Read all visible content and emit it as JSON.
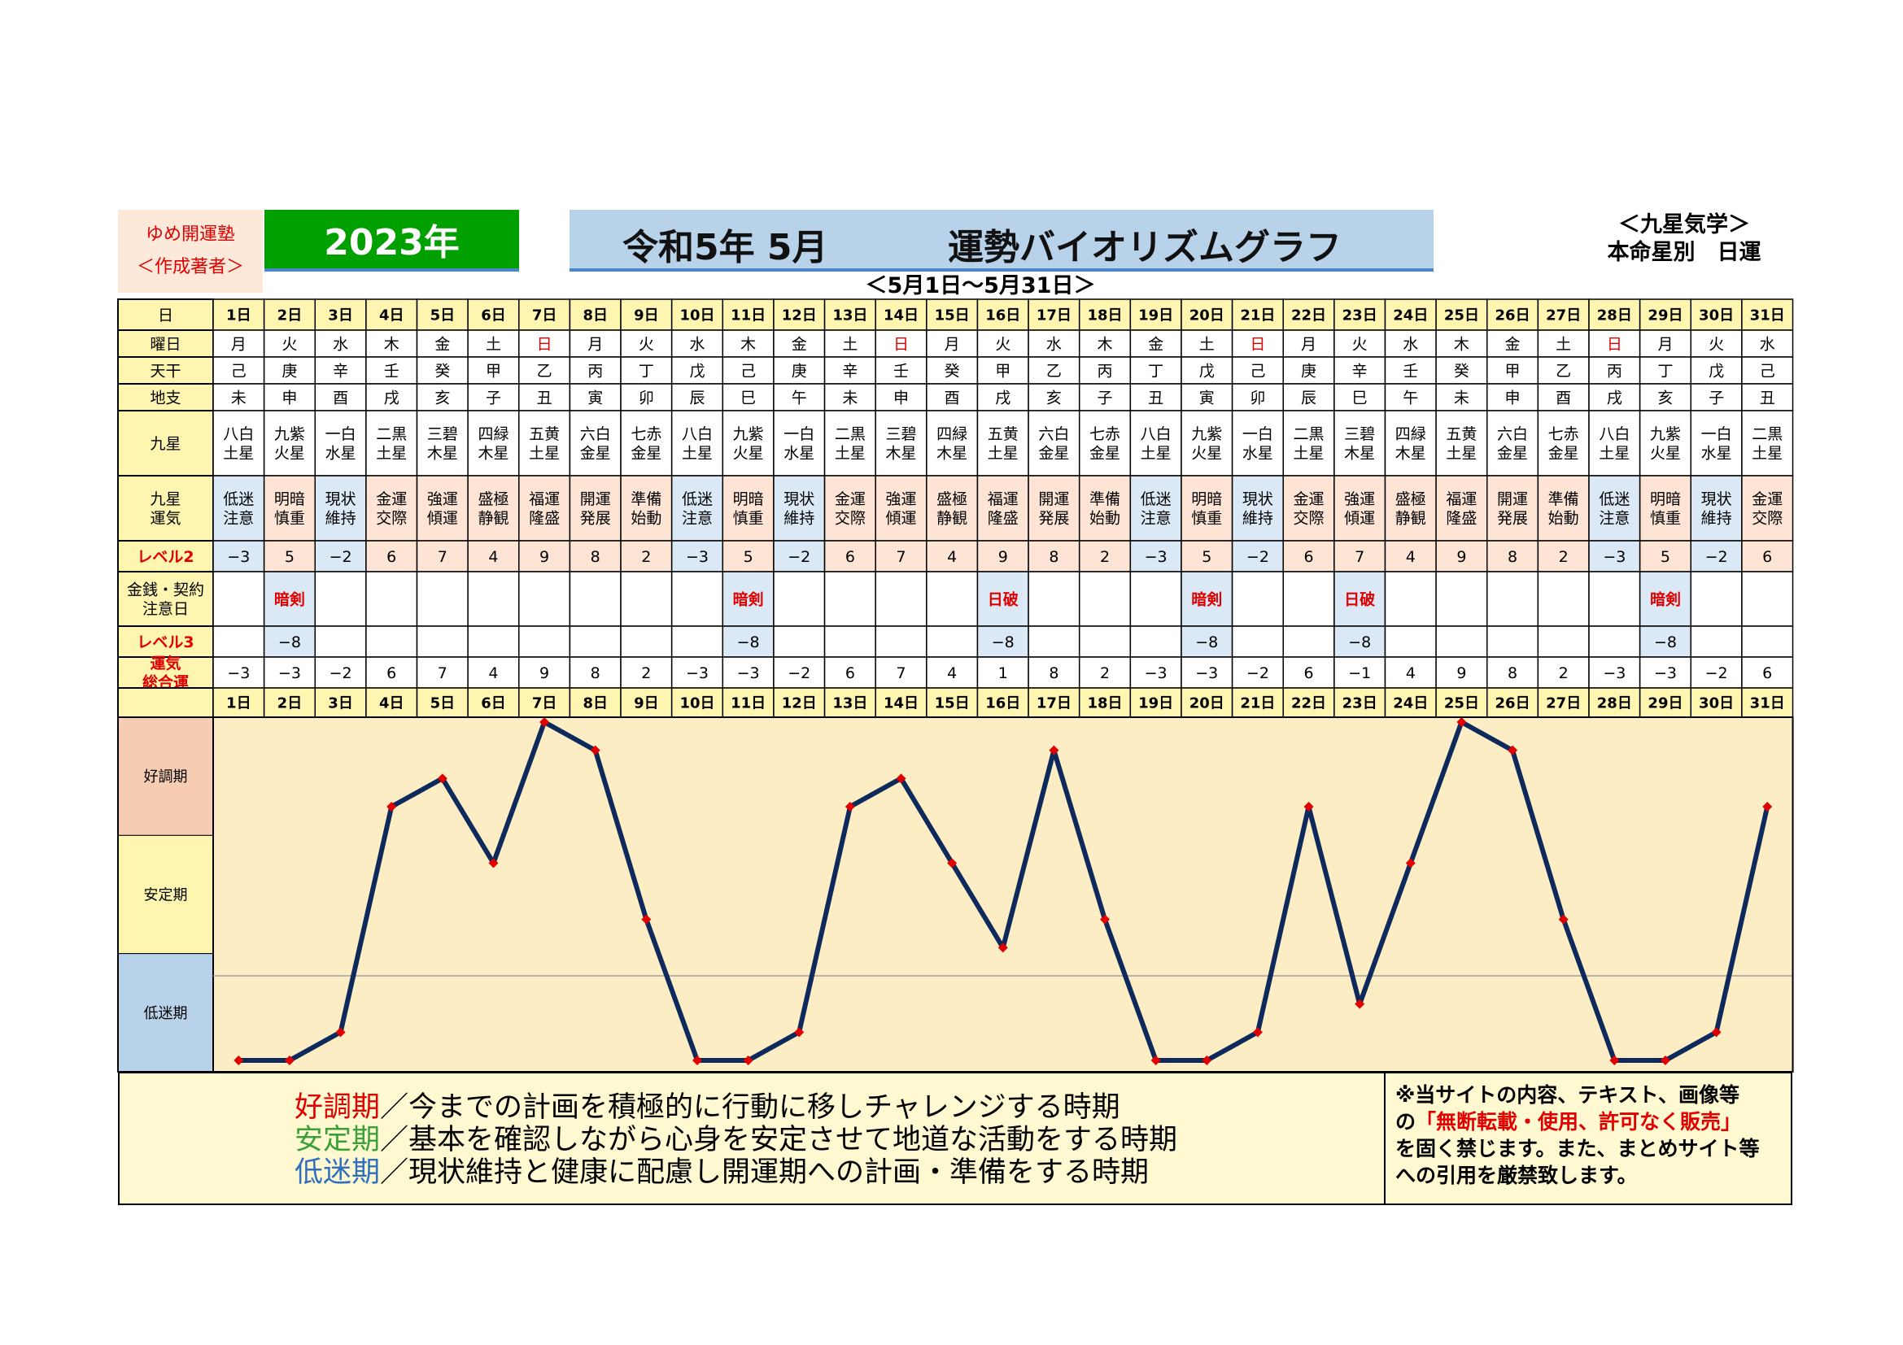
{
  "header": {
    "author_line1": "ゆめ開運塾",
    "author_line2": "＜作成著者＞",
    "year": "2023年",
    "title_left": "令和5年 5月",
    "title_right": "運勢バイオリズムグラフ",
    "corner_line1": "＜九星気学＞",
    "corner_line2": "本命星別　日運",
    "range": "＜5月1日～5月31日＞"
  },
  "table": {
    "row_labels": {
      "day": "日",
      "weekday": "曜日",
      "stem": "天干",
      "branch": "地支",
      "star": "九星",
      "fortune": "九星\n運気",
      "level2": "レベル2",
      "money": "金銭・契約\n注意日",
      "level3": "レベル3",
      "total": "運気\n総合運"
    },
    "days": [
      "1日",
      "2日",
      "3日",
      "4日",
      "5日",
      "6日",
      "7日",
      "8日",
      "9日",
      "10日",
      "11日",
      "12日",
      "13日",
      "14日",
      "15日",
      "16日",
      "17日",
      "18日",
      "19日",
      "20日",
      "21日",
      "22日",
      "23日",
      "24日",
      "25日",
      "26日",
      "27日",
      "28日",
      "29日",
      "30日",
      "31日"
    ],
    "weekdays": [
      "月",
      "火",
      "水",
      "木",
      "金",
      "土",
      "日",
      "月",
      "火",
      "水",
      "木",
      "金",
      "土",
      "日",
      "月",
      "火",
      "水",
      "木",
      "金",
      "土",
      "日",
      "月",
      "火",
      "水",
      "木",
      "金",
      "土",
      "日",
      "月",
      "火",
      "水"
    ],
    "stems": [
      "己",
      "庚",
      "辛",
      "壬",
      "癸",
      "甲",
      "乙",
      "丙",
      "丁",
      "戊",
      "己",
      "庚",
      "辛",
      "壬",
      "癸",
      "甲",
      "乙",
      "丙",
      "丁",
      "戊",
      "己",
      "庚",
      "辛",
      "壬",
      "癸",
      "甲",
      "乙",
      "丙",
      "丁",
      "戊",
      "己"
    ],
    "branches": [
      "未",
      "申",
      "酉",
      "戌",
      "亥",
      "子",
      "丑",
      "寅",
      "卯",
      "辰",
      "巳",
      "午",
      "未",
      "申",
      "酉",
      "戌",
      "亥",
      "子",
      "丑",
      "寅",
      "卯",
      "辰",
      "巳",
      "午",
      "未",
      "申",
      "酉",
      "戌",
      "亥",
      "子",
      "丑"
    ],
    "stars": [
      "八白\n土星",
      "九紫\n火星",
      "一白\n水星",
      "二黒\n土星",
      "三碧\n木星",
      "四緑\n木星",
      "五黄\n土星",
      "六白\n金星",
      "七赤\n金星",
      "八白\n土星",
      "九紫\n火星",
      "一白\n水星",
      "二黒\n土星",
      "三碧\n木星",
      "四緑\n木星",
      "五黄\n土星",
      "六白\n金星",
      "七赤\n金星",
      "八白\n土星",
      "九紫\n火星",
      "一白\n水星",
      "二黒\n土星",
      "三碧\n木星",
      "四緑\n木星",
      "五黄\n土星",
      "六白\n金星",
      "七赤\n金星",
      "八白\n土星",
      "九紫\n火星",
      "一白\n水星",
      "二黒\n土星"
    ],
    "fortunes": [
      "低迷\n注意",
      "明暗\n慎重",
      "現状\n維持",
      "金運\n交際",
      "強運\n傾運",
      "盛極\n静観",
      "福運\n隆盛",
      "開運\n発展",
      "準備\n始動",
      "低迷\n注意",
      "明暗\n慎重",
      "現状\n維持",
      "金運\n交際",
      "強運\n傾運",
      "盛極\n静観",
      "福運\n隆盛",
      "開運\n発展",
      "準備\n始動",
      "低迷\n注意",
      "明暗\n慎重",
      "現状\n維持",
      "金運\n交際",
      "強運\n傾運",
      "盛極\n静観",
      "福運\n隆盛",
      "開運\n発展",
      "準備\n始動",
      "低迷\n注意",
      "明暗\n慎重",
      "現状\n維持",
      "金運\n交際"
    ],
    "level2": [
      "−3",
      "5",
      "−2",
      "6",
      "7",
      "4",
      "9",
      "8",
      "2",
      "−3",
      "5",
      "−2",
      "6",
      "7",
      "4",
      "9",
      "8",
      "2",
      "−3",
      "5",
      "−2",
      "6",
      "7",
      "4",
      "9",
      "8",
      "2",
      "−3",
      "5",
      "−2",
      "6"
    ],
    "money": [
      "",
      "暗剣",
      "",
      "",
      "",
      "",
      "",
      "",
      "",
      "",
      "暗剣",
      "",
      "",
      "",
      "",
      "日破",
      "",
      "",
      "",
      "暗剣",
      "",
      "",
      "日破",
      "",
      "",
      "",
      "",
      "",
      "暗剣",
      "",
      ""
    ],
    "level3": [
      "",
      "−8",
      "",
      "",
      "",
      "",
      "",
      "",
      "",
      "",
      "−8",
      "",
      "",
      "",
      "",
      "−8",
      "",
      "",
      "",
      "−8",
      "",
      "",
      "−8",
      "",
      "",
      "",
      "",
      "",
      "−8",
      "",
      ""
    ],
    "total": [
      "−3",
      "−3",
      "−2",
      "6",
      "7",
      "4",
      "9",
      "8",
      "2",
      "−3",
      "−3",
      "−2",
      "6",
      "7",
      "4",
      "1",
      "8",
      "2",
      "−3",
      "−3",
      "−2",
      "6",
      "−1",
      "4",
      "9",
      "8",
      "2",
      "−3",
      "−3",
      "−2",
      "6"
    ]
  },
  "colors": {
    "row_label_bg": "#fdf5b0",
    "fortune_bg": "#fde4d4",
    "blue_cell": "#dbe8f5",
    "red_text": "#e00000",
    "line": "#0e2a5c",
    "marker": "#e00000",
    "chart_bg": "#fdedc4",
    "good_bg": "#f6ccb2",
    "stable_bg": "#fdf5b0",
    "low_bg": "#b8d2ea"
  },
  "bands": {
    "good": "好調期",
    "stable": "安定期",
    "low": "低迷期"
  },
  "chart_data": {
    "type": "line",
    "x": [
      "1日",
      "2日",
      "3日",
      "4日",
      "5日",
      "6日",
      "7日",
      "8日",
      "9日",
      "10日",
      "11日",
      "12日",
      "13日",
      "14日",
      "15日",
      "16日",
      "17日",
      "18日",
      "19日",
      "20日",
      "21日",
      "22日",
      "23日",
      "24日",
      "25日",
      "26日",
      "27日",
      "28日",
      "29日",
      "30日",
      "31日"
    ],
    "series": [
      {
        "values": [
          -3,
          -3,
          -2,
          6,
          7,
          4,
          9,
          8,
          2,
          -3,
          -3,
          -2,
          6,
          7,
          4,
          1,
          8,
          2,
          -3,
          -3,
          -2,
          6,
          -1,
          4,
          9,
          8,
          2,
          -3,
          -3,
          -2,
          6
        ]
      }
    ],
    "ylim": [
      -3,
      9
    ],
    "reference_line": 0,
    "grid": false
  },
  "legend": {
    "good_key": "好調期",
    "good_text": "／今までの計画を積極的に行動に移しチャレンジする時期",
    "stable_key": "安定期",
    "stable_text": "／基本を確認しながら心身を安定させて地道な活動をする時期",
    "low_key": "低迷期",
    "low_text": "／現状維持と健康に配慮し開運期への計画・準備をする時期",
    "good_key_color": "#e00000",
    "stable_key_color": "#3aa03a",
    "low_key_color": "#2f6fbf"
  },
  "notice": {
    "line1": "※当サイトの内容、テキスト、画像等",
    "line2_a": "の",
    "line2_red": "「無断転載・使用、許可なく販売」",
    "line3": "を固く禁じます。また、まとめサイト等",
    "line4": "への引用を厳禁致します。"
  }
}
